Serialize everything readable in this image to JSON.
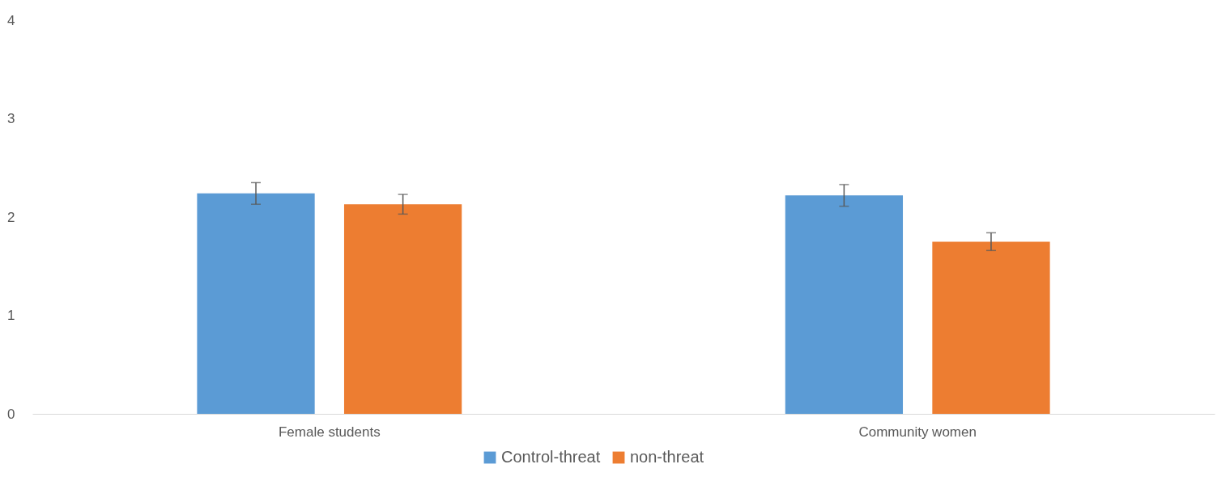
{
  "chart_data": {
    "type": "bar",
    "categories": [
      "Female students",
      "Community women"
    ],
    "series": [
      {
        "name": "Control-threat",
        "color": "#5b9bd5",
        "values": [
          2.24,
          2.22
        ],
        "errors": [
          0.11,
          0.11
        ]
      },
      {
        "name": "non-threat",
        "color": "#ed7d31",
        "values": [
          2.13,
          1.75
        ],
        "errors": [
          0.1,
          0.09
        ]
      }
    ],
    "ylim": [
      0,
      4
    ],
    "yticks": [
      0,
      1,
      2,
      3,
      4
    ],
    "grid": false,
    "legend": "bottom"
  }
}
